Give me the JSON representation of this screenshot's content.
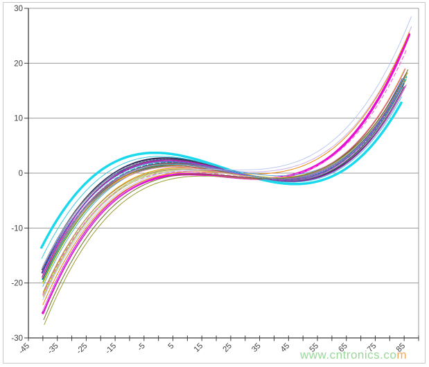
{
  "watermark": {
    "text_green": "www.cntronics.co",
    "text_orange": "m",
    "color_green": "#8fd48f",
    "color_orange": "#eda04e"
  },
  "chart_data": {
    "type": "line",
    "title": "",
    "xlabel": "",
    "ylabel": "",
    "legend": "none",
    "grid": "horizontal",
    "description": "Family of cubic frequency-deviation vs. temperature curves (AT-cut crystal style). All curves cross near T=25..30 at y=0, with a local maximum near T=0..5 (y=0..3), a local minimum near T=38..45 (y=0..-3), left endpoints between -12 and -28 ppm at T=-40, right endpoints between +13 and +29 ppm at T=85..88.",
    "curve_model": "y = a*(T-t0)^3 + d*(T-t0)^2 + b*(T-t0) + c",
    "x_axis": {
      "min": -45,
      "max": 90,
      "tick_step": 5,
      "label_step": 10,
      "tick_labels": [
        "-45",
        "-35",
        "-25",
        "-15",
        "-5",
        "5",
        "15",
        "25",
        "35",
        "45",
        "55",
        "65",
        "75",
        "85"
      ],
      "label_values": [
        -45,
        -35,
        -25,
        -15,
        -5,
        5,
        15,
        25,
        35,
        45,
        55,
        65,
        75,
        85
      ]
    },
    "y_axis": {
      "min": -30,
      "max": 30,
      "tick_step": 10,
      "tick_labels": [
        "30",
        "20",
        "10",
        "0",
        "-10",
        "-20",
        "-30"
      ],
      "label_values": [
        30,
        20,
        10,
        0,
        -10,
        -20,
        -30
      ]
    },
    "axis_color": "#3c3c3c",
    "grid_color": "#9a9a9a",
    "series": [
      {
        "name": "thick-cyan",
        "color": "#1bd9ec",
        "width": 3.5,
        "dash": "",
        "t0": 25,
        "a": 0.0001,
        "d": 0.0006,
        "b": -0.175,
        "c": 0.5,
        "x_start": -40.5,
        "x_end": 84
      },
      {
        "name": "thick-magenta",
        "color": "#e80ed1",
        "width": 3.5,
        "dash": "",
        "t0": 23,
        "a": 0.000112,
        "d": 0.0,
        "b": -0.05,
        "c": -0.6,
        "x_start": -40,
        "x_end": 87
      },
      {
        "name": "lavender",
        "color": "#c9aee8",
        "width": 1,
        "dash": "",
        "t0": 25,
        "a": 0.000105,
        "d": 0.0005,
        "b": -0.02,
        "c": 0.3,
        "x_start": -40,
        "x_end": 88
      },
      {
        "name": "olive",
        "color": "#9a9a2e",
        "width": 1,
        "dash": "",
        "t0": 26,
        "a": 0.0001,
        "d": -0.0003,
        "b": -0.04,
        "c": -0.8,
        "x_start": -39.5,
        "x_end": 86
      },
      {
        "name": "orange-bright",
        "color": "#f08300",
        "width": 1,
        "dash": "",
        "t0": 24,
        "a": 0.000105,
        "d": 0.0004,
        "b": -0.03,
        "c": 0.0,
        "x_start": -40,
        "x_end": 87
      },
      {
        "name": "yellow",
        "color": "#efd800",
        "width": 1.8,
        "dash": "",
        "t0": 25,
        "a": 0.000105,
        "d": 0.0005,
        "b": -0.1,
        "c": 0.2,
        "x_start": -40,
        "x_end": 85.5
      },
      {
        "name": "gold",
        "color": "#d9a300",
        "width": 1.2,
        "dash": "",
        "t0": 26,
        "a": 0.000102,
        "d": 0.0004,
        "b": -0.085,
        "c": -0.1,
        "x_start": -40,
        "x_end": 86
      },
      {
        "name": "dark-gray",
        "color": "#3a3a3a",
        "width": 1.4,
        "dash": "",
        "t0": 25,
        "a": 0.000106,
        "d": 0.0005,
        "b": -0.145,
        "c": 0.35,
        "x_start": -40.3,
        "x_end": 85
      },
      {
        "name": "black",
        "color": "#1e1e1e",
        "width": 1,
        "dash": "",
        "t0": 24.5,
        "a": 0.000104,
        "d": 0.0004,
        "b": -0.125,
        "c": 0.25,
        "x_start": -40.2,
        "x_end": 85
      },
      {
        "name": "navy",
        "color": "#232368",
        "width": 1.2,
        "dash": "",
        "t0": 25.5,
        "a": 0.000107,
        "d": 0.0005,
        "b": -0.15,
        "c": 0.4,
        "x_start": -40.4,
        "x_end": 85.2
      },
      {
        "name": "slate-blue",
        "color": "#5f6fb4",
        "width": 1,
        "dash": "",
        "t0": 25,
        "a": 0.000103,
        "d": 0.0004,
        "b": -0.11,
        "c": 0.3,
        "x_start": -40,
        "x_end": 85.5
      },
      {
        "name": "royal-blue",
        "color": "#2a52be",
        "width": 1,
        "dash": "",
        "t0": 24,
        "a": 0.000105,
        "d": 0.0005,
        "b": -0.13,
        "c": 0.2,
        "x_start": -40.2,
        "x_end": 85
      },
      {
        "name": "sky-blue",
        "color": "#58a6e0",
        "width": 1,
        "dash": "",
        "t0": 26,
        "a": 0.0001,
        "d": 0.0004,
        "b": -0.09,
        "c": 0.45,
        "x_start": -40,
        "x_end": 86
      },
      {
        "name": "dashed-indigo",
        "color": "#4a55c0",
        "width": 1.2,
        "dash": "3,2",
        "t0": 25,
        "a": 0.000106,
        "d": 0.0005,
        "b": -0.14,
        "c": 0.3,
        "x_start": -40.1,
        "x_end": 85
      },
      {
        "name": "teal",
        "color": "#0e8b8b",
        "width": 1,
        "dash": "",
        "t0": 25,
        "a": 0.000102,
        "d": 0.0004,
        "b": -0.105,
        "c": 0.1,
        "x_start": -40,
        "x_end": 85.8
      },
      {
        "name": "dashed-teal",
        "color": "#00b2b2",
        "width": 1.6,
        "dash": "6,3",
        "t0": 25.5,
        "a": 0.000104,
        "d": 0.0005,
        "b": -0.12,
        "c": 0.15,
        "x_start": -40.2,
        "x_end": 86
      },
      {
        "name": "green",
        "color": "#2e9940",
        "width": 1,
        "dash": "",
        "t0": 24.5,
        "a": 0.000103,
        "d": 0.0004,
        "b": -0.095,
        "c": 0.05,
        "x_start": -40,
        "x_end": 85.4
      },
      {
        "name": "yellow-green",
        "color": "#9abd3b",
        "width": 1,
        "dash": "",
        "t0": 26,
        "a": 0.0001,
        "d": 0.0003,
        "b": -0.075,
        "c": -0.15,
        "x_start": -39.8,
        "x_end": 86
      },
      {
        "name": "dark-red",
        "color": "#8c2222",
        "width": 1,
        "dash": "",
        "t0": 25,
        "a": 0.000104,
        "d": 0.0004,
        "b": -0.115,
        "c": 0.2,
        "x_start": -40.1,
        "x_end": 85.2
      },
      {
        "name": "brick",
        "color": "#b4452a",
        "width": 1,
        "dash": "",
        "t0": 24,
        "a": 0.000102,
        "d": 0.0004,
        "b": -0.1,
        "c": 0.0,
        "x_start": -40,
        "x_end": 85.6
      },
      {
        "name": "tan",
        "color": "#b08a5c",
        "width": 1,
        "dash": "",
        "t0": 25.5,
        "a": 0.0001,
        "d": 0.0003,
        "b": -0.08,
        "c": -0.2,
        "x_start": -39.9,
        "x_end": 86.2
      },
      {
        "name": "gray",
        "color": "#8a8a8a",
        "width": 1,
        "dash": "",
        "t0": 25,
        "a": 0.000103,
        "d": 0.0005,
        "b": -0.135,
        "c": 0.3,
        "x_start": -40.2,
        "x_end": 85
      },
      {
        "name": "silver",
        "color": "#b9b9c4",
        "width": 1,
        "dash": "",
        "t0": 24.5,
        "a": 0.0001,
        "d": 0.0004,
        "b": -0.12,
        "c": 0.4,
        "x_start": -40.3,
        "x_end": 85.3
      },
      {
        "name": "purple",
        "color": "#7a3aa8",
        "width": 1,
        "dash": "",
        "t0": 25,
        "a": 0.000105,
        "d": 0.0005,
        "b": -0.13,
        "c": 0.25,
        "x_start": -40.1,
        "x_end": 85
      },
      {
        "name": "dark-purple",
        "color": "#4e3a7c",
        "width": 1,
        "dash": "",
        "t0": 25.5,
        "a": 0.000106,
        "d": 0.0004,
        "b": -0.14,
        "c": 0.3,
        "x_start": -40.2,
        "x_end": 85.1
      },
      {
        "name": "orchid",
        "color": "#bd66c8",
        "width": 1,
        "dash": "",
        "t0": 24.5,
        "a": 0.000102,
        "d": 0.0004,
        "b": -0.11,
        "c": 0.15,
        "x_start": -40,
        "x_end": 85.6
      },
      {
        "name": "dashed-violet",
        "color": "#a44ed2",
        "width": 1.2,
        "dash": "7,3",
        "t0": 25,
        "a": 0.000104,
        "d": 0.0005,
        "b": -0.125,
        "c": 0.2,
        "x_start": -40.1,
        "x_end": 85.4
      },
      {
        "name": "pink",
        "color": "#ee7fb2",
        "width": 1,
        "dash": "",
        "t0": 24,
        "a": 0.0001,
        "d": 0.0004,
        "b": -0.09,
        "c": -0.05,
        "x_start": -39.9,
        "x_end": 86
      },
      {
        "name": "dashed-pink",
        "color": "#f06fd8",
        "width": 1.2,
        "dash": "5,4",
        "t0": 23.5,
        "a": 0.000105,
        "d": 0.0003,
        "b": -0.06,
        "c": -0.35,
        "x_start": -40,
        "x_end": 86.5
      },
      {
        "name": "magenta-thin",
        "color": "#d21bb4",
        "width": 1,
        "dash": "",
        "t0": 25,
        "a": 0.000105,
        "d": 0.0002,
        "b": -0.14,
        "c": 0.3,
        "x_start": -40.3,
        "x_end": 86.3
      },
      {
        "name": "cyan-thin",
        "color": "#3bc8dc",
        "width": 1,
        "dash": "",
        "t0": 25,
        "a": 0.000101,
        "d": 0.0005,
        "b": -0.155,
        "c": 0.45,
        "x_start": -40.4,
        "x_end": 84.8
      },
      {
        "name": "steel",
        "color": "#7c94b4",
        "width": 1,
        "dash": "",
        "t0": 25,
        "a": 0.000101,
        "d": 0.0004,
        "b": -0.105,
        "c": 0.25,
        "x_start": -40,
        "x_end": 85.7
      },
      {
        "name": "khaki",
        "color": "#bfbf7a",
        "width": 1,
        "dash": "",
        "t0": 26,
        "a": 9.9e-05,
        "d": 0.0003,
        "b": -0.07,
        "c": -0.25,
        "x_start": -39.8,
        "x_end": 86.4
      },
      {
        "name": "dark-olive",
        "color": "#6b6b1e",
        "width": 1,
        "dash": "",
        "t0": 25.5,
        "a": 0.000103,
        "d": -0.0002,
        "b": -0.05,
        "c": -0.55,
        "x_start": -39.7,
        "x_end": 86.6
      },
      {
        "name": "pale-blue",
        "color": "#b8c8ee",
        "width": 1,
        "dash": "",
        "t0": 24,
        "a": 0.000102,
        "d": 0.0006,
        "b": -0.01,
        "c": 0.6,
        "x_start": -40,
        "x_end": 88
      },
      {
        "name": "dashed-blue",
        "color": "#3d7fd9",
        "width": 1,
        "dash": "2,2",
        "t0": 25,
        "a": 0.000103,
        "d": 0.0005,
        "b": -0.12,
        "c": 0.3,
        "x_start": -40.1,
        "x_end": 85.3
      }
    ]
  }
}
